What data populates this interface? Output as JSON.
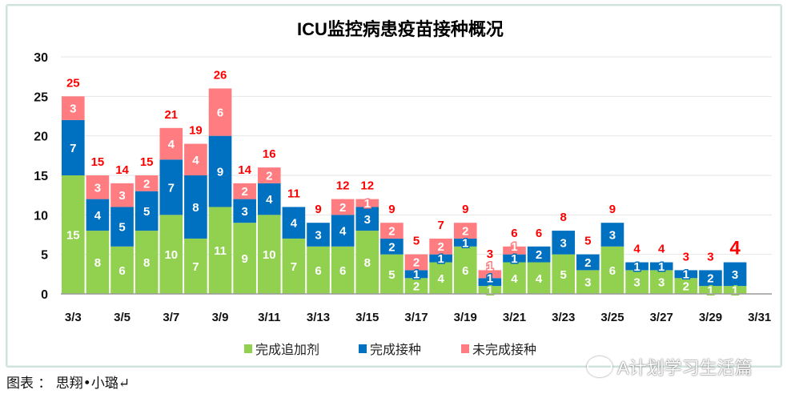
{
  "chart_data": {
    "type": "bar",
    "stacked": true,
    "title": "ICU监控病患疫苗接种概况",
    "categories": [
      "3/3",
      "3/4",
      "3/5",
      "3/6",
      "3/7",
      "3/8",
      "3/9",
      "3/10",
      "3/11",
      "3/12",
      "3/13",
      "3/14",
      "3/15",
      "3/16",
      "3/17",
      "3/18",
      "3/19",
      "3/20",
      "3/21",
      "3/22",
      "3/23",
      "3/24",
      "3/25",
      "3/26",
      "3/27",
      "3/28",
      "3/29",
      "3/30",
      "3/31"
    ],
    "tick_labels": [
      "3/3",
      "3/5",
      "3/7",
      "3/9",
      "3/11",
      "3/13",
      "3/15",
      "3/17",
      "3/19",
      "3/21",
      "3/23",
      "3/25",
      "3/27",
      "3/29",
      "3/31"
    ],
    "series": [
      {
        "name": "完成追加剂",
        "color": "#92d050",
        "values": [
          15,
          8,
          6,
          8,
          10,
          7,
          11,
          9,
          10,
          7,
          6,
          6,
          8,
          5,
          2,
          4,
          6,
          1,
          4,
          4,
          5,
          3,
          6,
          3,
          3,
          2,
          1,
          1,
          null
        ]
      },
      {
        "name": "完成接种",
        "color": "#0070c0",
        "values": [
          7,
          4,
          5,
          5,
          7,
          8,
          9,
          3,
          4,
          4,
          3,
          4,
          3,
          2,
          1,
          1,
          1,
          1,
          1,
          2,
          3,
          2,
          3,
          1,
          1,
          1,
          2,
          3,
          null
        ]
      },
      {
        "name": "未完成接种",
        "color": "#ff7c80",
        "values": [
          3,
          3,
          3,
          2,
          4,
          4,
          6,
          2,
          2,
          0,
          0,
          2,
          1,
          2,
          2,
          2,
          2,
          1,
          1,
          0,
          0,
          0,
          0,
          0,
          0,
          0,
          0,
          0,
          null
        ]
      }
    ],
    "totals": [
      25,
      15,
      14,
      15,
      21,
      19,
      26,
      14,
      16,
      11,
      9,
      12,
      12,
      9,
      5,
      7,
      9,
      3,
      6,
      6,
      8,
      5,
      9,
      4,
      4,
      3,
      3,
      4,
      null
    ],
    "total_label_color": "#ff0000",
    "ylim": [
      0,
      30
    ],
    "yticks": [
      0,
      5,
      10,
      15,
      20,
      25,
      30
    ],
    "grid": true,
    "legend_position": "bottom",
    "xlabel": "",
    "ylabel": ""
  },
  "caption": "图表 ： 思翔•小璐↵",
  "watermark": "A计划学习生活篇"
}
